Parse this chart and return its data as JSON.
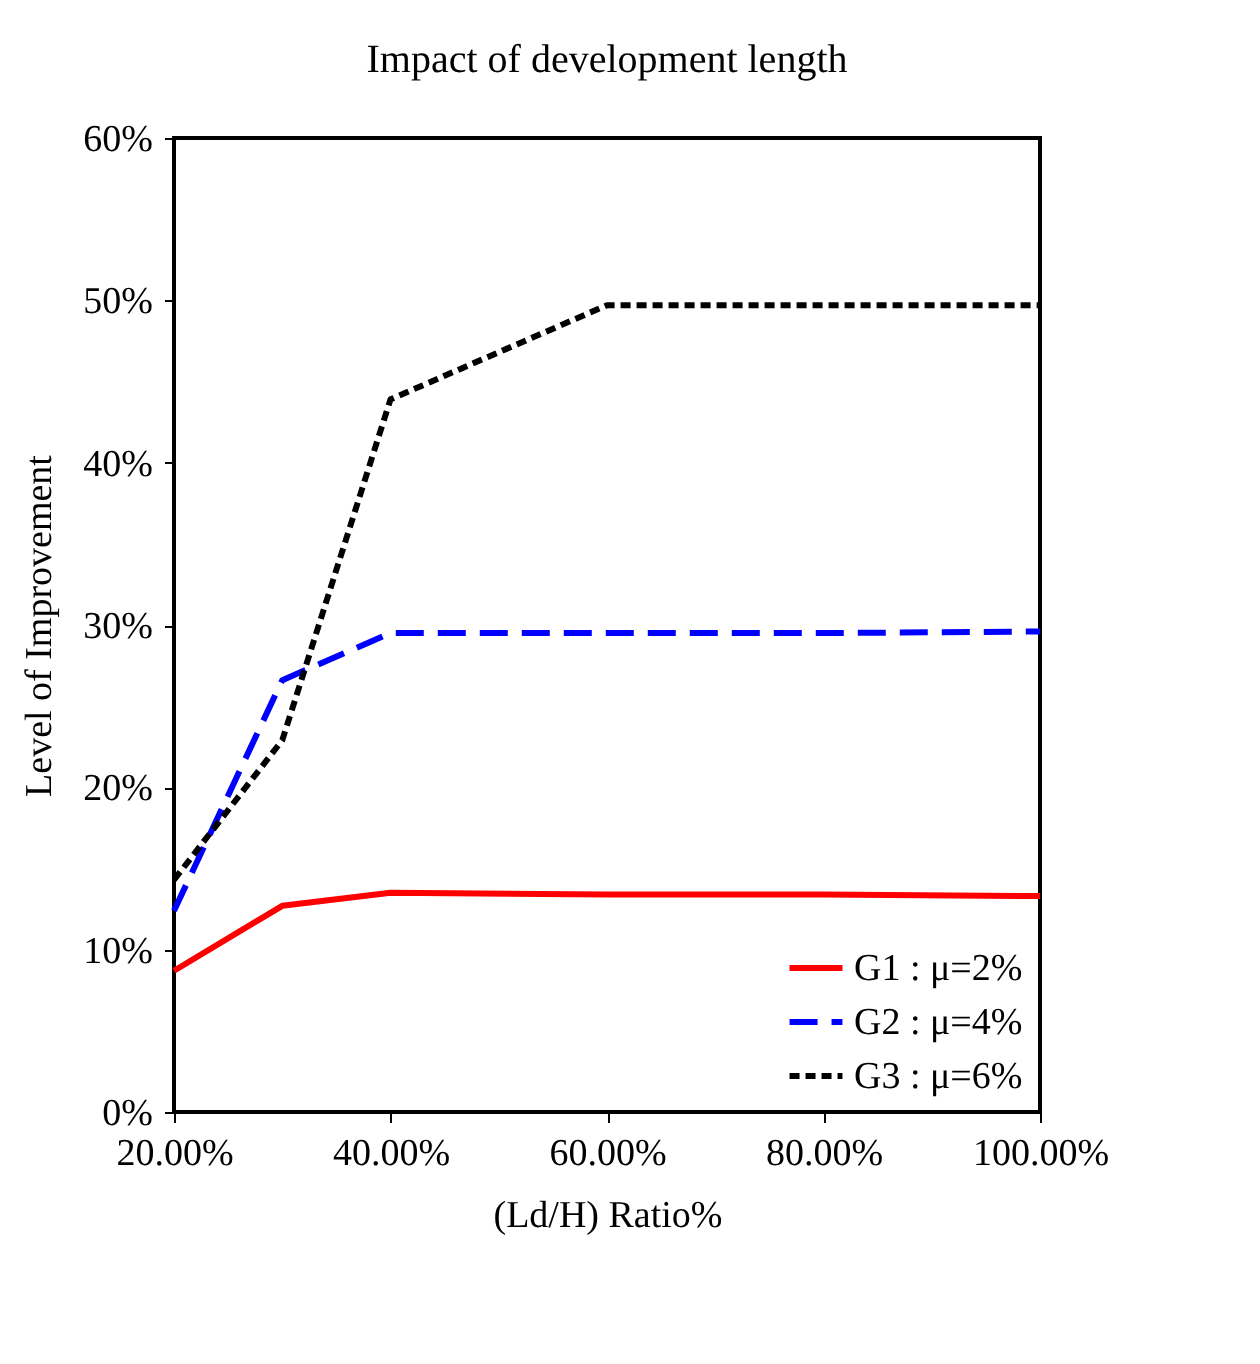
{
  "chart_data": {
    "type": "line",
    "title": "Impact of development length",
    "xlabel": "(Ld/H) Ratio%",
    "ylabel": "Level of Improvement",
    "x": [
      20,
      30,
      40,
      60,
      80,
      100
    ],
    "series": [
      {
        "name": "G1 : μ=2%",
        "color": "#ff0000",
        "line_style": "solid",
        "values": [
          8.7,
          12.7,
          13.5,
          13.4,
          13.4,
          13.3
        ]
      },
      {
        "name": "G2 : μ=4%",
        "color": "#0000ff",
        "line_style": "dashed",
        "values": [
          12.4,
          26.6,
          29.5,
          29.5,
          29.5,
          29.6
        ]
      },
      {
        "name": "G3 : μ=6%",
        "color": "#000000",
        "line_style": "dotted",
        "values": [
          14.3,
          22.9,
          43.9,
          49.7,
          49.7,
          49.7
        ]
      }
    ],
    "xlim": [
      20,
      100
    ],
    "xticks": [
      {
        "value": 20,
        "label": "20.00%"
      },
      {
        "value": 40,
        "label": "40.00%"
      },
      {
        "value": 60,
        "label": "60.00%"
      },
      {
        "value": 80,
        "label": "80.00%"
      },
      {
        "value": 100,
        "label": "100.00%"
      }
    ],
    "ylim": [
      0,
      60
    ],
    "yticks": [
      {
        "value": 0,
        "label": "0%"
      },
      {
        "value": 10,
        "label": "10%"
      },
      {
        "value": 20,
        "label": "20%"
      },
      {
        "value": 30,
        "label": "30%"
      },
      {
        "value": 40,
        "label": "40%"
      },
      {
        "value": 50,
        "label": "50%"
      },
      {
        "value": 60,
        "label": "60%"
      }
    ],
    "grid": false,
    "legend": "bottom right",
    "marker": "none"
  }
}
